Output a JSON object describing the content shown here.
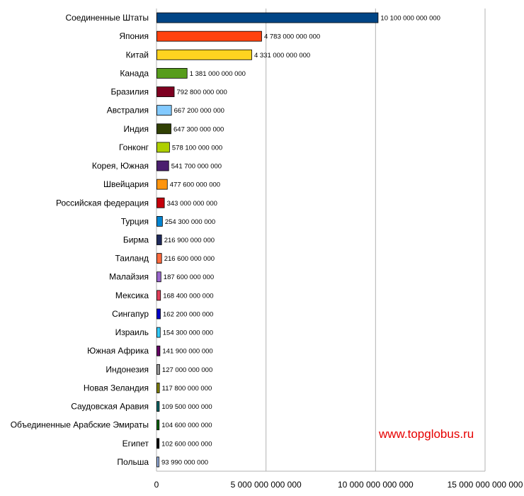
{
  "watermark": {
    "text": "www.topglobus.ru",
    "color": "#e60000"
  },
  "chart_data": {
    "type": "bar",
    "orientation": "horizontal",
    "title": "",
    "xlabel": "",
    "ylabel": "",
    "xlim": [
      0,
      15000000000000
    ],
    "grid": "vertical",
    "legend": "none",
    "x_ticks": [
      0,
      5000000000000,
      10000000000000,
      15000000000000
    ],
    "x_tick_labels": [
      "0",
      "5 000 000 000 000",
      "10 000 000 000 000",
      "15 000 000 000 000"
    ],
    "categories": [
      "Соединенные Штаты",
      "Япония",
      "Китай",
      "Канада",
      "Бразилия",
      "Австралия",
      "Индия",
      "Гонконг",
      "Корея, Южная",
      "Швейцария",
      "Российская федерация",
      "Турция",
      "Бирма",
      "Таиланд",
      "Малайзия",
      "Мексика",
      "Сингапур",
      "Израиль",
      "Южная Африка",
      "Индонезия",
      "Новая Зеландия",
      "Саудовская Аравия",
      "Объединенные Арабские Эмираты",
      "Египет",
      "Польша"
    ],
    "values": [
      10100000000000,
      4783000000000,
      4331000000000,
      1381000000000,
      792800000000,
      667200000000,
      647300000000,
      578100000000,
      541700000000,
      477600000000,
      343000000000,
      254300000000,
      216900000000,
      216600000000,
      187600000000,
      168400000000,
      162200000000,
      154300000000,
      141900000000,
      127000000000,
      117800000000,
      109500000000,
      104600000000,
      102600000000,
      93990000000
    ],
    "value_labels": [
      "10 100 000 000 000",
      "4 783 000 000 000",
      "4 331 000 000 000",
      "1 381 000 000 000",
      "792 800 000 000",
      "667 200 000 000",
      "647 300 000 000",
      "578 100 000 000",
      "541 700 000 000",
      "477 600 000 000",
      "343 000 000 000",
      "254 300 000 000",
      "216 900 000 000",
      "216 600 000 000",
      "187 600 000 000",
      "168 400 000 000",
      "162 200 000 000",
      "154 300 000 000",
      "141 900 000 000",
      "127 000 000 000",
      "117 800 000 000",
      "109 500 000 000",
      "104 600 000 000",
      "102 600 000 000",
      "93 990 000 000"
    ],
    "colors": [
      "#004586",
      "#ff420e",
      "#ffd320",
      "#579d1c",
      "#7e0021",
      "#83caff",
      "#314004",
      "#aecf00",
      "#4b1f6f",
      "#ff950e",
      "#c5000b",
      "#0084d1",
      "#1f2a5c",
      "#ff6a3d",
      "#9966cc",
      "#e0405a",
      "#0000cc",
      "#33ccff",
      "#660066",
      "#999999",
      "#808000",
      "#006666",
      "#006600",
      "#000000",
      "#99b3e6"
    ]
  }
}
